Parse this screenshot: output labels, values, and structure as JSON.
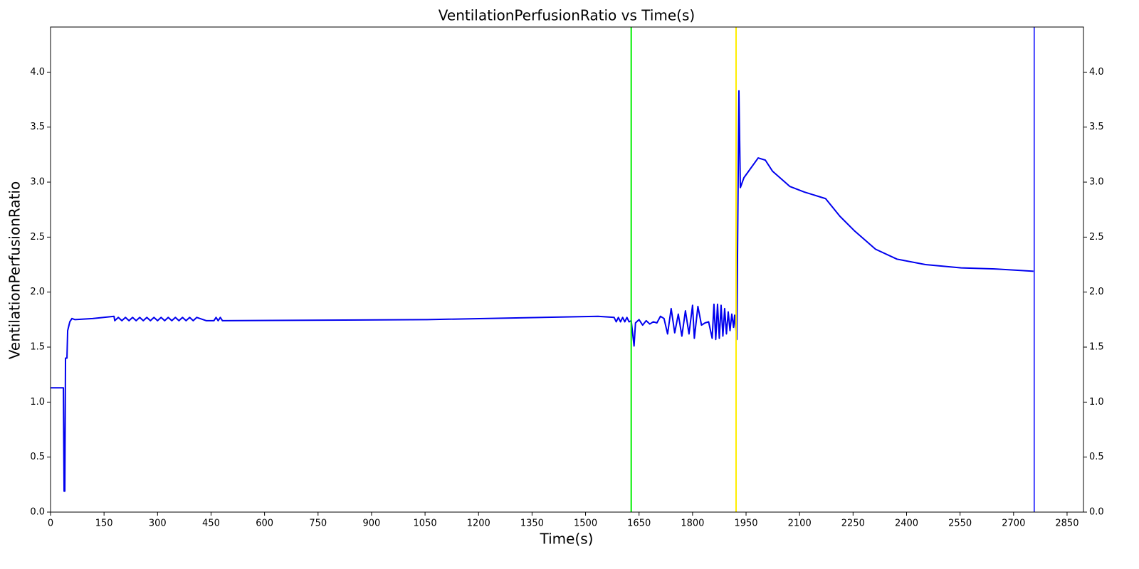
{
  "chart_data": {
    "type": "line",
    "title": "VentilationPerfusionRatio vs Time(s)",
    "x_label": "Time(s)",
    "y_label": "VentilationPerfusionRatio",
    "xlim": [
      0,
      2896
    ],
    "ylim": [
      0,
      4.41
    ],
    "xticks": [
      0,
      150,
      300,
      450,
      600,
      750,
      900,
      1050,
      1200,
      1350,
      1500,
      1650,
      1800,
      1950,
      2100,
      2250,
      2400,
      2550,
      2700,
      2850
    ],
    "yticks": [
      {
        "value": 0,
        "label": "0.0"
      },
      0.5,
      {
        "value": 1,
        "label": "1.0"
      },
      1.5,
      {
        "value": 2,
        "label": "2.0"
      },
      2.5,
      {
        "value": 3,
        "label": "3.0"
      },
      3.5,
      {
        "value": 4,
        "label": "4.0"
      }
    ],
    "right_axis": true,
    "vlines": [
      {
        "x": 1628,
        "color": "#00ee00"
      },
      {
        "x": 1922,
        "color": "#ffee00"
      },
      {
        "x": 2758,
        "color": "#4444ff"
      }
    ],
    "series": [
      {
        "name": "VentilationPerfusionRatio",
        "color": "#0000ee",
        "x": [
          0,
          36,
          38,
          40,
          42,
          46,
          48,
          54,
          60,
          68,
          118,
          178,
          180,
          190,
          200,
          210,
          220,
          230,
          240,
          250,
          260,
          270,
          280,
          290,
          300,
          310,
          320,
          330,
          340,
          350,
          360,
          370,
          380,
          390,
          400,
          410,
          437,
          458,
          464,
          470,
          476,
          482,
          1056,
          1535,
          1580,
          1586,
          1592,
          1598,
          1604,
          1610,
          1616,
          1622,
          1628,
          1636,
          1640,
          1650,
          1660,
          1670,
          1680,
          1690,
          1700,
          1710,
          1720,
          1730,
          1740,
          1750,
          1760,
          1770,
          1780,
          1790,
          1800,
          1805,
          1815,
          1825,
          1835,
          1845,
          1855,
          1860,
          1865,
          1870,
          1875,
          1880,
          1885,
          1890,
          1895,
          1900,
          1905,
          1910,
          1915,
          1918,
          1924,
          1930,
          1934,
          1944,
          1984,
          2004,
          2024,
          2073,
          2113,
          2173,
          2213,
          2253,
          2313,
          2373,
          2453,
          2553,
          2652,
          2756
        ],
        "values": [
          1.13,
          1.13,
          0.19,
          0.19,
          1.4,
          1.4,
          1.65,
          1.73,
          1.76,
          1.75,
          1.76,
          1.78,
          1.74,
          1.77,
          1.74,
          1.77,
          1.74,
          1.77,
          1.74,
          1.77,
          1.74,
          1.77,
          1.74,
          1.77,
          1.74,
          1.77,
          1.74,
          1.77,
          1.74,
          1.77,
          1.74,
          1.77,
          1.74,
          1.77,
          1.74,
          1.77,
          1.74,
          1.74,
          1.77,
          1.74,
          1.77,
          1.74,
          1.75,
          1.78,
          1.77,
          1.73,
          1.77,
          1.73,
          1.77,
          1.73,
          1.77,
          1.73,
          1.74,
          1.51,
          1.72,
          1.75,
          1.7,
          1.74,
          1.71,
          1.73,
          1.72,
          1.78,
          1.76,
          1.62,
          1.85,
          1.63,
          1.8,
          1.6,
          1.83,
          1.62,
          1.88,
          1.58,
          1.87,
          1.7,
          1.72,
          1.73,
          1.58,
          1.89,
          1.57,
          1.89,
          1.58,
          1.88,
          1.6,
          1.85,
          1.62,
          1.82,
          1.65,
          1.8,
          1.68,
          1.79,
          1.57,
          3.83,
          2.95,
          3.04,
          3.22,
          3.2,
          3.1,
          2.96,
          2.91,
          2.85,
          2.69,
          2.56,
          2.39,
          2.3,
          2.25,
          2.22,
          2.21,
          2.19
        ]
      }
    ]
  }
}
